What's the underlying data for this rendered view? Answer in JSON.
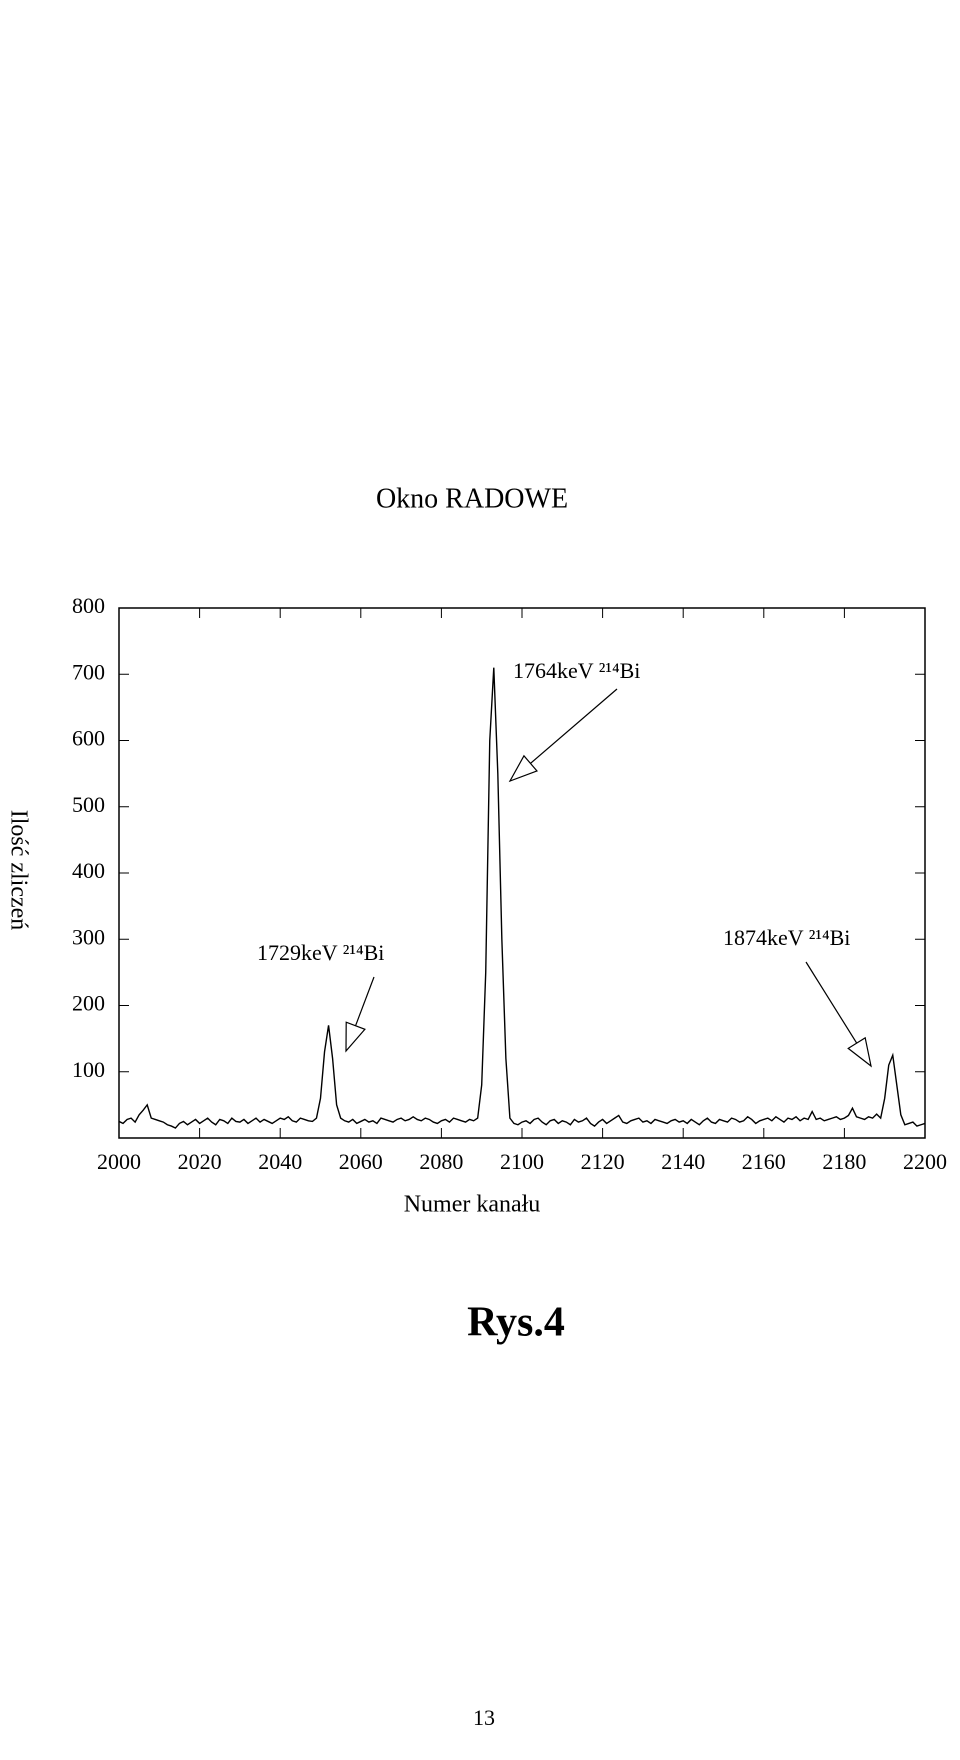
{
  "chart_data": {
    "type": "line",
    "title": "Okno RADOWE",
    "x_label": "Numer kanału",
    "y_label": "Ilość zliczeń",
    "x": [
      2000,
      2001,
      2002,
      2003,
      2004,
      2005,
      2006,
      2007,
      2008,
      2009,
      2010,
      2011,
      2012,
      2013,
      2014,
      2015,
      2016,
      2017,
      2018,
      2019,
      2020,
      2021,
      2022,
      2023,
      2024,
      2025,
      2026,
      2027,
      2028,
      2029,
      2030,
      2031,
      2032,
      2033,
      2034,
      2035,
      2036,
      2037,
      2038,
      2039,
      2040,
      2041,
      2042,
      2043,
      2044,
      2045,
      2046,
      2047,
      2048,
      2049,
      2050,
      2051,
      2052,
      2053,
      2054,
      2055,
      2056,
      2057,
      2058,
      2059,
      2060,
      2061,
      2062,
      2063,
      2064,
      2065,
      2066,
      2067,
      2068,
      2069,
      2070,
      2071,
      2072,
      2073,
      2074,
      2075,
      2076,
      2077,
      2078,
      2079,
      2080,
      2081,
      2082,
      2083,
      2084,
      2085,
      2086,
      2087,
      2088,
      2089,
      2090,
      2091,
      2092,
      2093,
      2094,
      2095,
      2096,
      2097,
      2098,
      2099,
      2100,
      2101,
      2102,
      2103,
      2104,
      2105,
      2106,
      2107,
      2108,
      2109,
      2110,
      2111,
      2112,
      2113,
      2114,
      2115,
      2116,
      2117,
      2118,
      2119,
      2120,
      2121,
      2122,
      2123,
      2124,
      2125,
      2126,
      2127,
      2128,
      2129,
      2130,
      2131,
      2132,
      2133,
      2134,
      2135,
      2136,
      2137,
      2138,
      2139,
      2140,
      2141,
      2142,
      2143,
      2144,
      2145,
      2146,
      2147,
      2148,
      2149,
      2150,
      2151,
      2152,
      2153,
      2154,
      2155,
      2156,
      2157,
      2158,
      2159,
      2160,
      2161,
      2162,
      2163,
      2164,
      2165,
      2166,
      2167,
      2168,
      2169,
      2170,
      2171,
      2172,
      2173,
      2174,
      2175,
      2176,
      2177,
      2178,
      2179,
      2180,
      2181,
      2182,
      2183,
      2184,
      2185,
      2186,
      2187,
      2188,
      2189,
      2190,
      2191,
      2192,
      2193,
      2194,
      2195,
      2196,
      2197,
      2198,
      2199,
      2200
    ],
    "values": [
      25,
      22,
      28,
      30,
      24,
      35,
      42,
      50,
      30,
      28,
      26,
      24,
      20,
      18,
      15,
      22,
      25,
      20,
      24,
      28,
      22,
      26,
      30,
      24,
      20,
      28,
      26,
      22,
      30,
      25,
      24,
      28,
      22,
      26,
      30,
      24,
      28,
      25,
      22,
      26,
      30,
      28,
      32,
      26,
      24,
      30,
      28,
      26,
      25,
      30,
      60,
      130,
      170,
      120,
      50,
      30,
      26,
      24,
      28,
      22,
      25,
      28,
      24,
      26,
      22,
      30,
      28,
      26,
      24,
      28,
      30,
      26,
      28,
      32,
      28,
      26,
      30,
      28,
      24,
      22,
      26,
      28,
      24,
      30,
      28,
      26,
      24,
      28,
      26,
      30,
      80,
      250,
      600,
      710,
      550,
      300,
      120,
      30,
      22,
      20,
      24,
      26,
      22,
      28,
      30,
      24,
      20,
      26,
      28,
      22,
      26,
      24,
      20,
      28,
      24,
      26,
      30,
      22,
      18,
      24,
      28,
      22,
      26,
      30,
      34,
      24,
      22,
      26,
      28,
      30,
      24,
      26,
      22,
      28,
      26,
      24,
      22,
      26,
      28,
      24,
      26,
      22,
      28,
      24,
      20,
      26,
      30,
      24,
      22,
      28,
      26,
      24,
      30,
      28,
      24,
      26,
      32,
      28,
      22,
      26,
      28,
      30,
      26,
      32,
      28,
      24,
      30,
      28,
      32,
      26,
      30,
      28,
      40,
      28,
      30,
      26,
      28,
      30,
      32,
      28,
      30,
      34,
      45,
      32,
      30,
      28,
      32,
      30,
      36,
      30,
      60,
      110,
      125,
      80,
      35,
      20,
      22,
      24,
      18,
      20,
      22
    ],
    "color": "#000000",
    "xlim": [
      2000,
      2200
    ],
    "xticks": [
      2000,
      2020,
      2040,
      2060,
      2080,
      2100,
      2120,
      2140,
      2160,
      2180,
      2200
    ],
    "ylim": [
      0,
      800
    ],
    "yticks": [
      100,
      200,
      300,
      400,
      500,
      600,
      700,
      800
    ],
    "annotations": [
      {
        "text": "1764keV ²¹⁴Bi"
      },
      {
        "text": "1729keV ²¹⁴Bi"
      },
      {
        "text": "1874keV ²¹⁴Bi"
      }
    ]
  },
  "figure_caption": "Rys.4",
  "page_number": "13"
}
